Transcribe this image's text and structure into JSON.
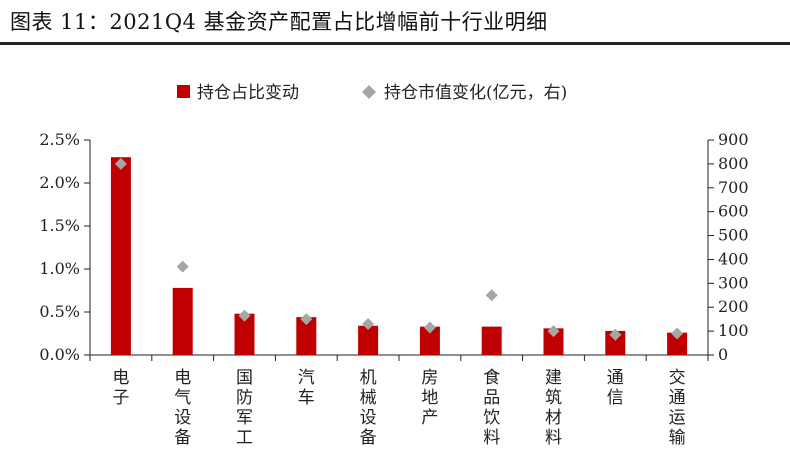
{
  "figure_title": "图表 11：2021Q4 基金资产配置占比增幅前十行业明细",
  "chart_data": {
    "type": "bar",
    "categories": [
      "电子",
      "电气设备",
      "国防军工",
      "汽车",
      "机械设备",
      "房地产",
      "食品饮料",
      "建筑材料",
      "通信",
      "交通运输"
    ],
    "series": [
      {
        "name": "持仓占比变动",
        "kind": "bar",
        "axis": "left",
        "color": "#c00000",
        "values": [
          2.3,
          0.78,
          0.48,
          0.44,
          0.34,
          0.33,
          0.33,
          0.31,
          0.28,
          0.26
        ]
      },
      {
        "name": "持仓市值变化(亿元，右)",
        "kind": "marker",
        "axis": "right",
        "color": "#a6a6a6",
        "values": [
          800,
          370,
          165,
          150,
          130,
          115,
          250,
          100,
          85,
          90
        ]
      }
    ],
    "y_left": {
      "min": 0,
      "max": 2.5,
      "step": 0.5,
      "tick_labels": [
        "0.0%",
        "0.5%",
        "1.0%",
        "1.5%",
        "2.0%",
        "2.5%"
      ]
    },
    "y_right": {
      "min": 0,
      "max": 900,
      "step": 100,
      "tick_labels": [
        "0",
        "100",
        "200",
        "300",
        "400",
        "500",
        "600",
        "700",
        "800",
        "900"
      ]
    },
    "legend_position": "top",
    "grid": false
  }
}
